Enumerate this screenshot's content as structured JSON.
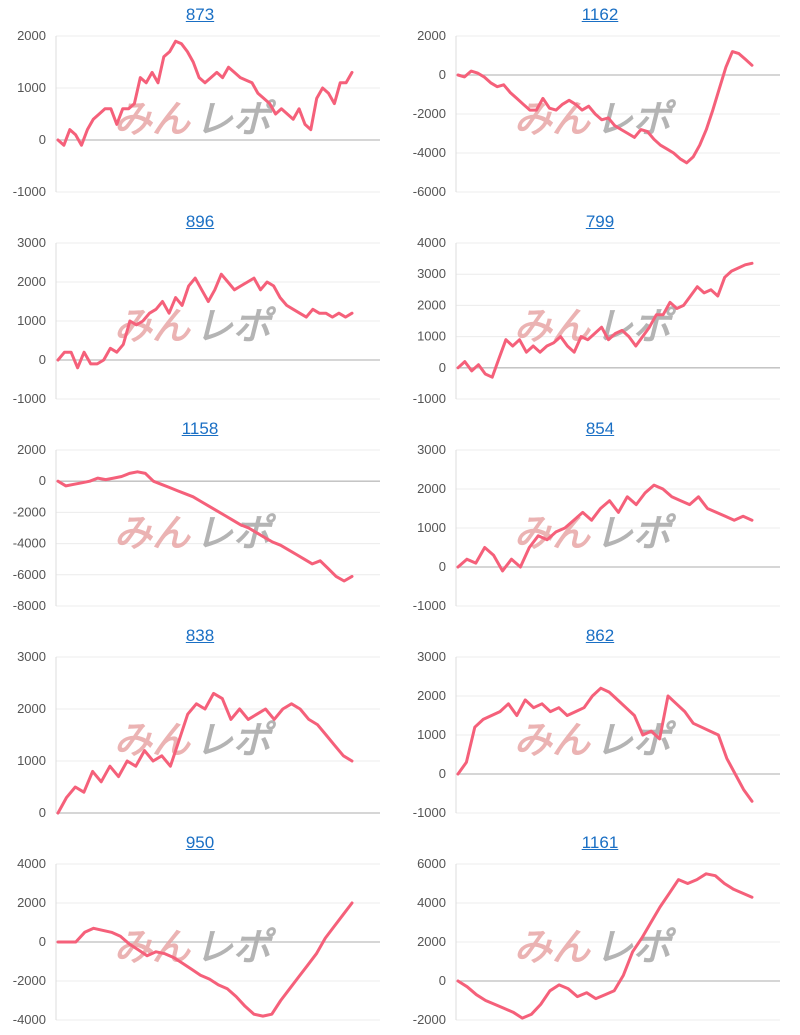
{
  "colors": {
    "line": "#f5607a",
    "axis": "#cccccc",
    "title": "#1a6fc4",
    "watermark_red": "#e8a6a6",
    "watermark_gray": "#a8a8a8"
  },
  "watermark": {
    "icon": "minrepo-watermark-logo",
    "text_red": "みん",
    "text_gray": "レポ"
  },
  "chart_data": [
    {
      "type": "line",
      "title": "873",
      "yticks": [
        2000,
        1000,
        0,
        -1000
      ],
      "ylim": [
        -1000,
        2000
      ],
      "values": [
        0,
        -100,
        200,
        100,
        -100,
        200,
        400,
        500,
        600,
        600,
        300,
        600,
        600,
        700,
        1200,
        1100,
        1300,
        1100,
        1600,
        1700,
        1900,
        1850,
        1700,
        1500,
        1200,
        1100,
        1200,
        1300,
        1200,
        1400,
        1300,
        1200,
        1150,
        1100,
        900,
        800,
        700,
        500,
        600,
        500,
        400,
        600,
        300,
        200,
        800,
        1000,
        900,
        700,
        1100,
        1100,
        1300
      ]
    },
    {
      "type": "line",
      "title": "1162",
      "yticks": [
        2000,
        0,
        -2000,
        -4000,
        -6000
      ],
      "ylim": [
        -6000,
        2000
      ],
      "values": [
        0,
        -100,
        200,
        100,
        -100,
        -400,
        -600,
        -500,
        -900,
        -1200,
        -1500,
        -1800,
        -1800,
        -1200,
        -1700,
        -1800,
        -1500,
        -1300,
        -1500,
        -1800,
        -1600,
        -2000,
        -2300,
        -2200,
        -2600,
        -2800,
        -3000,
        -3200,
        -2800,
        -2900,
        -3300,
        -3600,
        -3800,
        -4000,
        -4300,
        -4500,
        -4200,
        -3600,
        -2800,
        -1800,
        -700,
        400,
        1200,
        1100,
        800,
        500
      ]
    },
    {
      "type": "line",
      "title": "896",
      "yticks": [
        3000,
        2000,
        1000,
        0,
        -1000
      ],
      "ylim": [
        -1000,
        3000
      ],
      "values": [
        0,
        200,
        200,
        -200,
        200,
        -100,
        -100,
        0,
        300,
        200,
        400,
        1000,
        900,
        1000,
        1200,
        1300,
        1500,
        1200,
        1600,
        1400,
        1900,
        2100,
        1800,
        1500,
        1800,
        2200,
        2000,
        1800,
        1900,
        2000,
        2100,
        1800,
        2000,
        1900,
        1600,
        1400,
        1300,
        1200,
        1100,
        1300,
        1200,
        1200,
        1100,
        1200,
        1100,
        1200
      ]
    },
    {
      "type": "line",
      "title": "799",
      "yticks": [
        4000,
        3000,
        2000,
        1000,
        0,
        -1000
      ],
      "ylim": [
        -1000,
        4000
      ],
      "values": [
        0,
        200,
        -100,
        100,
        -200,
        -300,
        300,
        900,
        700,
        900,
        500,
        700,
        500,
        700,
        800,
        1000,
        700,
        500,
        1000,
        900,
        1100,
        1300,
        900,
        1100,
        1200,
        1000,
        700,
        1000,
        1300,
        1700,
        1700,
        2100,
        1900,
        2000,
        2300,
        2600,
        2400,
        2500,
        2300,
        2900,
        3100,
        3200,
        3300,
        3350
      ]
    },
    {
      "type": "line",
      "title": "1158",
      "yticks": [
        2000,
        0,
        -2000,
        -4000,
        -6000,
        -8000
      ],
      "ylim": [
        -8000,
        2000
      ],
      "values": [
        0,
        -300,
        -200,
        -100,
        0,
        200,
        100,
        200,
        300,
        500,
        600,
        500,
        0,
        -200,
        -400,
        -600,
        -800,
        -1000,
        -1300,
        -1600,
        -1900,
        -2200,
        -2500,
        -2800,
        -3000,
        -3300,
        -3600,
        -3900,
        -4100,
        -4400,
        -4700,
        -5000,
        -5300,
        -5100,
        -5600,
        -6100,
        -6400,
        -6100
      ]
    },
    {
      "type": "line",
      "title": "854",
      "yticks": [
        3000,
        2000,
        1000,
        0,
        -1000
      ],
      "ylim": [
        -1000,
        3000
      ],
      "values": [
        0,
        200,
        100,
        500,
        300,
        -100,
        200,
        0,
        500,
        800,
        700,
        900,
        1000,
        1200,
        1400,
        1200,
        1500,
        1700,
        1400,
        1800,
        1600,
        1900,
        2100,
        2000,
        1800,
        1700,
        1600,
        1800,
        1500,
        1400,
        1300,
        1200,
        1300,
        1200
      ]
    },
    {
      "type": "line",
      "title": "838",
      "yticks": [
        3000,
        2000,
        1000,
        0
      ],
      "ylim": [
        0,
        3000
      ],
      "values": [
        0,
        300,
        500,
        400,
        800,
        600,
        900,
        700,
        1000,
        900,
        1200,
        1000,
        1100,
        900,
        1400,
        1900,
        2100,
        2000,
        2300,
        2200,
        1800,
        2000,
        1800,
        1900,
        2000,
        1800,
        2000,
        2100,
        2000,
        1800,
        1700,
        1500,
        1300,
        1100,
        1000
      ]
    },
    {
      "type": "line",
      "title": "862",
      "yticks": [
        3000,
        2000,
        1000,
        0,
        -1000
      ],
      "ylim": [
        -1000,
        3000
      ],
      "values": [
        0,
        300,
        1200,
        1400,
        1500,
        1600,
        1800,
        1500,
        1900,
        1700,
        1800,
        1600,
        1700,
        1500,
        1600,
        1700,
        2000,
        2200,
        2100,
        1900,
        1700,
        1500,
        1000,
        1100,
        900,
        2000,
        1800,
        1600,
        1300,
        1200,
        1100,
        1000,
        400,
        0,
        -400,
        -700
      ]
    },
    {
      "type": "line",
      "title": "950",
      "yticks": [
        4000,
        2000,
        0,
        -2000,
        -4000
      ],
      "ylim": [
        -4000,
        4000
      ],
      "values": [
        0,
        0,
        0,
        500,
        700,
        600,
        500,
        300,
        -100,
        -400,
        -700,
        -500,
        -600,
        -800,
        -1100,
        -1400,
        -1700,
        -1900,
        -2200,
        -2400,
        -2800,
        -3300,
        -3700,
        -3800,
        -3700,
        -3000,
        -2400,
        -1800,
        -1200,
        -600,
        200,
        800,
        1400,
        2000
      ]
    },
    {
      "type": "line",
      "title": "1161",
      "yticks": [
        6000,
        4000,
        2000,
        0,
        -2000
      ],
      "ylim": [
        -2000,
        6000
      ],
      "values": [
        0,
        -300,
        -700,
        -1000,
        -1200,
        -1400,
        -1600,
        -1900,
        -1700,
        -1200,
        -500,
        -200,
        -400,
        -800,
        -600,
        -900,
        -700,
        -500,
        300,
        1500,
        2200,
        3000,
        3800,
        4500,
        5200,
        5000,
        5200,
        5500,
        5400,
        5000,
        4700,
        4500,
        4300
      ]
    }
  ]
}
